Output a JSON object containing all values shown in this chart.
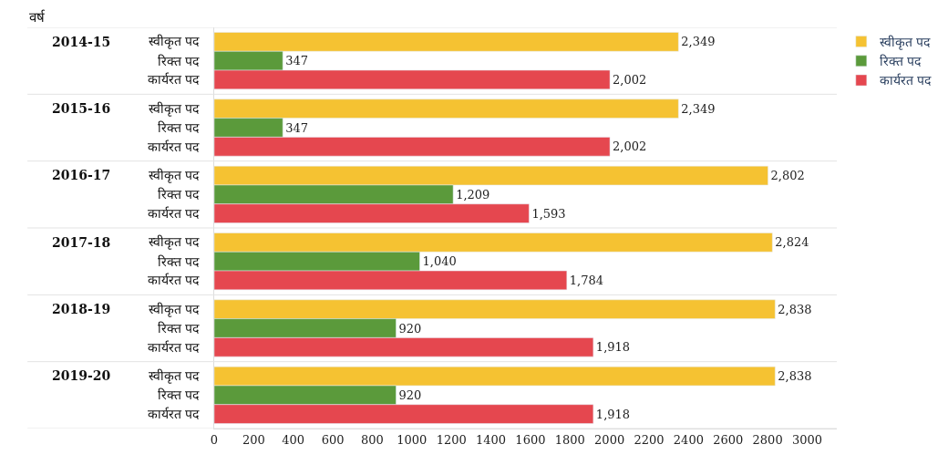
{
  "chart_data": {
    "type": "bar",
    "orientation": "horizontal",
    "annotations": [
      "वर्ष"
    ],
    "categories": [
      "2014-15",
      "2015-16",
      "2016-17",
      "2017-18",
      "2018-19",
      "2019-20"
    ],
    "series": [
      {
        "name": "स्वीकृत पद",
        "color": "#f5c232",
        "values": [
          2349,
          2349,
          2802,
          2824,
          2838,
          2838
        ],
        "value_labels": [
          "2,349",
          "2,349",
          "2,802",
          "2,824",
          "2,838",
          "2,838"
        ]
      },
      {
        "name": "रिक्त पद",
        "color": "#5b9a3b",
        "values": [
          347,
          347,
          1209,
          1040,
          920,
          920
        ],
        "value_labels": [
          "347",
          "347",
          "1,209",
          "1,040",
          "920",
          "920"
        ]
      },
      {
        "name": "कार्यरत पद",
        "color": "#e5474f",
        "values": [
          2002,
          2002,
          1593,
          1784,
          1918,
          1918
        ],
        "value_labels": [
          "2,002",
          "2,002",
          "1,593",
          "1,784",
          "1,918",
          "1,918"
        ]
      }
    ],
    "xlim": [
      0,
      3150
    ],
    "xticks": [
      0,
      200,
      400,
      600,
      800,
      1000,
      1200,
      1400,
      1600,
      1800,
      2000,
      2200,
      2400,
      2600,
      2800,
      3000
    ],
    "legend": "top right"
  }
}
